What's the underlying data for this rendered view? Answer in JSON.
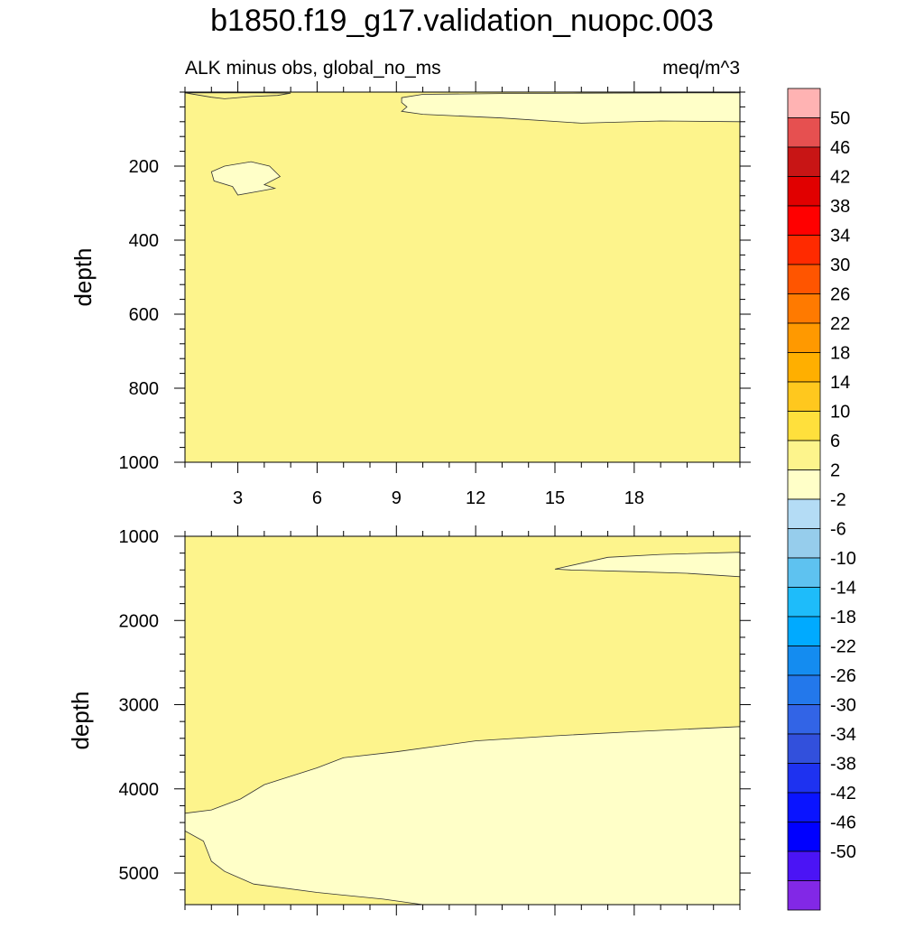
{
  "chart_data": {
    "title": "b1850.f19_g17.validation_nuopc.003",
    "subtitle_left": "ALK minus obs, global_no_ms",
    "subtitle_right": "meq/m^3",
    "colors": {
      "band_2_6": "#fdf48c",
      "band_m2_2": "#ffffc8",
      "contour_line": "#333333"
    },
    "panels": [
      {
        "type": "heatmap",
        "ylabel": "depth",
        "x_range": [
          1,
          22
        ],
        "x_ticks": [
          3,
          6,
          9,
          12,
          15,
          18
        ],
        "y_range": [
          0,
          1000
        ],
        "y_ticks": [
          200,
          400,
          600,
          800,
          1000
        ],
        "y_inverted": true,
        "background_band": "2 to 6",
        "regions": [
          {
            "band": "-2 to 2",
            "outline": [
              [
                9.2,
                15
              ],
              [
                10,
                6
              ],
              [
                13,
                4
              ],
              [
                16,
                3
              ],
              [
                20,
                2
              ],
              [
                22,
                2
              ],
              [
                22,
                80
              ],
              [
                19,
                78
              ],
              [
                16,
                84
              ],
              [
                13,
                70
              ],
              [
                10,
                60
              ],
              [
                9.2,
                52
              ],
              [
                9.4,
                40
              ],
              [
                9.2,
                28
              ]
            ]
          },
          {
            "band": "-2 to 2",
            "outline": [
              [
                2,
                215
              ],
              [
                2.5,
                200
              ],
              [
                3.5,
                188
              ],
              [
                4.2,
                200
              ],
              [
                4.6,
                228
              ],
              [
                4,
                250
              ],
              [
                4.4,
                260
              ],
              [
                3.8,
                268
              ],
              [
                3,
                278
              ],
              [
                2.8,
                255
              ],
              [
                2.1,
                240
              ]
            ]
          },
          {
            "band": "2 to 6",
            "outline": [
              [
                1,
                2
              ],
              [
                2,
                14
              ],
              [
                2.5,
                18
              ],
              [
                3.5,
                12
              ],
              [
                4.5,
                9
              ],
              [
                5,
                3
              ],
              [
                4,
                2
              ]
            ]
          }
        ]
      },
      {
        "type": "heatmap",
        "ylabel": "depth",
        "x_range": [
          1,
          22
        ],
        "x_ticks": [
          3,
          6,
          9,
          12,
          15,
          18
        ],
        "y_range": [
          1000,
          5375
        ],
        "y_ticks": [
          1000,
          2000,
          3000,
          4000,
          5000
        ],
        "y_inverted": true,
        "background_band": "2 to 6",
        "regions": [
          {
            "band": "-2 to 2",
            "outline": [
              [
                15,
                1390
              ],
              [
                17,
                1250
              ],
              [
                19,
                1215
              ],
              [
                22,
                1190
              ],
              [
                22,
                1480
              ],
              [
                20,
                1440
              ],
              [
                18,
                1420
              ],
              [
                15.6,
                1400
              ]
            ]
          },
          {
            "band": "-2 to 2",
            "outline": [
              [
                1,
                4290
              ],
              [
                2,
                4250
              ],
              [
                3.1,
                4120
              ],
              [
                4,
                3950
              ],
              [
                6,
                3750
              ],
              [
                7,
                3630
              ],
              [
                9,
                3560
              ],
              [
                12,
                3430
              ],
              [
                15,
                3370
              ],
              [
                18,
                3320
              ],
              [
                22,
                3260
              ],
              [
                22,
                5375
              ],
              [
                10,
                5375
              ],
              [
                8.5,
                5310
              ],
              [
                6,
                5230
              ],
              [
                3.6,
                5130
              ],
              [
                2.5,
                4980
              ],
              [
                2,
                4860
              ],
              [
                1.7,
                4620
              ],
              [
                1,
                4500
              ]
            ]
          }
        ]
      }
    ],
    "colorbar": {
      "labels": [
        "50",
        "46",
        "42",
        "38",
        "34",
        "30",
        "26",
        "22",
        "18",
        "14",
        "10",
        "6",
        "2",
        "-2",
        "-6",
        "-10",
        "-14",
        "-18",
        "-22",
        "-26",
        "-30",
        "-34",
        "-38",
        "-42",
        "-46",
        "-50"
      ],
      "colors": [
        "#ffb3b3",
        "#e65050",
        "#c81515",
        "#e10000",
        "#ff0000",
        "#ff2a00",
        "#ff5500",
        "#ff7a00",
        "#ff9900",
        "#ffaf00",
        "#ffc81e",
        "#ffe03c",
        "#fdf48c",
        "#ffffc8",
        "#b4dcf5",
        "#96cdec",
        "#5ec2f0",
        "#1ebcfa",
        "#00aaff",
        "#148cf0",
        "#2378eb",
        "#3264e6",
        "#3250dc",
        "#1e32f0",
        "#0a14ff",
        "#0000ff",
        "#4b14f5",
        "#8228e6"
      ]
    }
  }
}
